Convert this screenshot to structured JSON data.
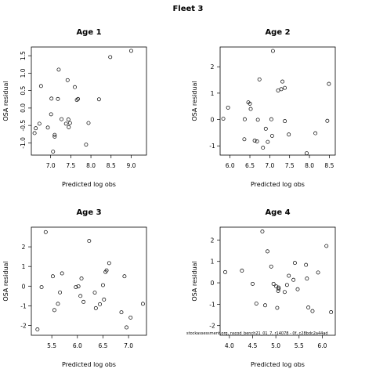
{
  "figure_title": "Fleet 3",
  "footnote": "stockassessment.org, nscod_bench21_01_7, r14078 - 0f, c28bdc2a44ad",
  "chart_data": [
    {
      "type": "scatter",
      "title": "Age 1",
      "xlabel": "Predicted log obs",
      "ylabel": "OSA residual",
      "xlim": [
        6.52,
        9.38
      ],
      "ylim": [
        -1.35,
        1.75
      ],
      "xticks": [
        7.0,
        7.5,
        8.0,
        8.5,
        9.0
      ],
      "yticks": [
        -1.0,
        -0.5,
        0.0,
        0.5,
        1.0,
        1.5
      ],
      "tick_format": 1,
      "y_tick_rotated": true,
      "points": [
        [
          6.6,
          -0.72
        ],
        [
          6.63,
          -0.58
        ],
        [
          6.72,
          -0.45
        ],
        [
          6.76,
          0.63
        ],
        [
          6.93,
          -0.56
        ],
        [
          7.01,
          -0.18
        ],
        [
          7.02,
          0.27
        ],
        [
          7.06,
          -1.25
        ],
        [
          7.1,
          -0.77
        ],
        [
          7.1,
          -0.82
        ],
        [
          7.18,
          0.26
        ],
        [
          7.2,
          1.1
        ],
        [
          7.27,
          -0.32
        ],
        [
          7.38,
          -0.45
        ],
        [
          7.42,
          0.8
        ],
        [
          7.44,
          -0.33
        ],
        [
          7.45,
          -0.55
        ],
        [
          7.48,
          -0.43
        ],
        [
          7.6,
          0.6
        ],
        [
          7.65,
          0.23
        ],
        [
          7.68,
          0.26
        ],
        [
          7.88,
          -1.05
        ],
        [
          7.94,
          -0.43
        ],
        [
          8.2,
          0.25
        ],
        [
          8.48,
          1.46
        ],
        [
          9.0,
          1.64
        ]
      ]
    },
    {
      "type": "scatter",
      "title": "Age 2",
      "xlabel": "Predicted log obs",
      "ylabel": "OSA residual",
      "xlim": [
        5.75,
        8.65
      ],
      "ylim": [
        -1.35,
        2.75
      ],
      "xticks": [
        6.0,
        6.5,
        7.0,
        7.5,
        8.0,
        8.5
      ],
      "yticks": [
        -1,
        0,
        1,
        2
      ],
      "tick_format": 1,
      "y_tick_rotated": false,
      "points": [
        [
          5.83,
          0.03
        ],
        [
          5.95,
          0.45
        ],
        [
          6.37,
          0.01
        ],
        [
          6.36,
          -0.75
        ],
        [
          6.46,
          0.65
        ],
        [
          6.5,
          0.6
        ],
        [
          6.52,
          0.4
        ],
        [
          6.62,
          -0.8
        ],
        [
          6.68,
          -0.83
        ],
        [
          6.7,
          -0.01
        ],
        [
          6.74,
          1.52
        ],
        [
          6.83,
          -1.07
        ],
        [
          6.9,
          -0.35
        ],
        [
          6.95,
          -0.85
        ],
        [
          7.04,
          0.01
        ],
        [
          7.06,
          -0.62
        ],
        [
          7.08,
          2.6
        ],
        [
          7.21,
          1.1
        ],
        [
          7.29,
          1.15
        ],
        [
          7.32,
          1.44
        ],
        [
          7.38,
          1.2
        ],
        [
          7.38,
          -0.06
        ],
        [
          7.48,
          -0.57
        ],
        [
          7.93,
          -1.28
        ],
        [
          8.15,
          -0.52
        ],
        [
          8.45,
          -0.05
        ],
        [
          8.49,
          1.35
        ]
      ]
    },
    {
      "type": "scatter",
      "title": "Age 3",
      "xlabel": "Predicted log obs",
      "ylabel": "OSA residual",
      "xlim": [
        5.1,
        7.35
      ],
      "ylim": [
        -2.5,
        3.0
      ],
      "xticks": [
        5.5,
        6.0,
        6.5,
        7.0
      ],
      "yticks": [
        -2,
        -1,
        0,
        1,
        2
      ],
      "tick_format": 1,
      "y_tick_rotated": false,
      "points": [
        [
          5.22,
          -2.2
        ],
        [
          5.3,
          -0.05
        ],
        [
          5.38,
          2.75
        ],
        [
          5.52,
          0.5
        ],
        [
          5.55,
          -1.22
        ],
        [
          5.62,
          -0.9
        ],
        [
          5.66,
          -0.32
        ],
        [
          5.7,
          0.65
        ],
        [
          5.97,
          -0.05
        ],
        [
          6.02,
          -0.01
        ],
        [
          6.06,
          -0.5
        ],
        [
          6.08,
          0.39
        ],
        [
          6.12,
          -0.8
        ],
        [
          6.23,
          2.3
        ],
        [
          6.34,
          -0.33
        ],
        [
          6.36,
          -1.12
        ],
        [
          6.44,
          -0.92
        ],
        [
          6.5,
          0.05
        ],
        [
          6.52,
          -0.68
        ],
        [
          6.55,
          0.72
        ],
        [
          6.57,
          0.8
        ],
        [
          6.62,
          1.17
        ],
        [
          6.86,
          -1.33
        ],
        [
          6.92,
          0.5
        ],
        [
          6.96,
          -2.1
        ],
        [
          7.04,
          -1.6
        ],
        [
          7.28,
          -0.9
        ]
      ]
    },
    {
      "type": "scatter",
      "title": "Age 4",
      "xlabel": "Predicted log obs",
      "ylabel": "OSA residual",
      "xlim": [
        3.8,
        6.28
      ],
      "ylim": [
        -2.45,
        2.6
      ],
      "xticks": [
        4.0,
        4.5,
        5.0,
        5.5,
        6.0
      ],
      "yticks": [
        -2,
        -1,
        0,
        1,
        2
      ],
      "tick_format": 1,
      "y_tick_rotated": false,
      "points": [
        [
          3.91,
          0.5
        ],
        [
          4.27,
          0.57
        ],
        [
          4.5,
          -0.05
        ],
        [
          4.58,
          -0.97
        ],
        [
          4.71,
          2.4
        ],
        [
          4.77,
          -1.05
        ],
        [
          4.82,
          1.47
        ],
        [
          4.9,
          0.76
        ],
        [
          4.95,
          -0.05
        ],
        [
          5.01,
          -0.17
        ],
        [
          5.03,
          -1.17
        ],
        [
          5.05,
          -0.38
        ],
        [
          5.06,
          -0.28
        ],
        [
          5.06,
          -0.22
        ],
        [
          5.19,
          -0.43
        ],
        [
          5.24,
          -0.1
        ],
        [
          5.28,
          0.33
        ],
        [
          5.38,
          0.14
        ],
        [
          5.41,
          0.93
        ],
        [
          5.47,
          -0.3
        ],
        [
          5.65,
          0.84
        ],
        [
          5.67,
          0.2
        ],
        [
          5.7,
          -1.15
        ],
        [
          5.79,
          -1.32
        ],
        [
          5.91,
          0.48
        ],
        [
          6.09,
          1.72
        ],
        [
          6.19,
          -1.37
        ]
      ]
    }
  ]
}
